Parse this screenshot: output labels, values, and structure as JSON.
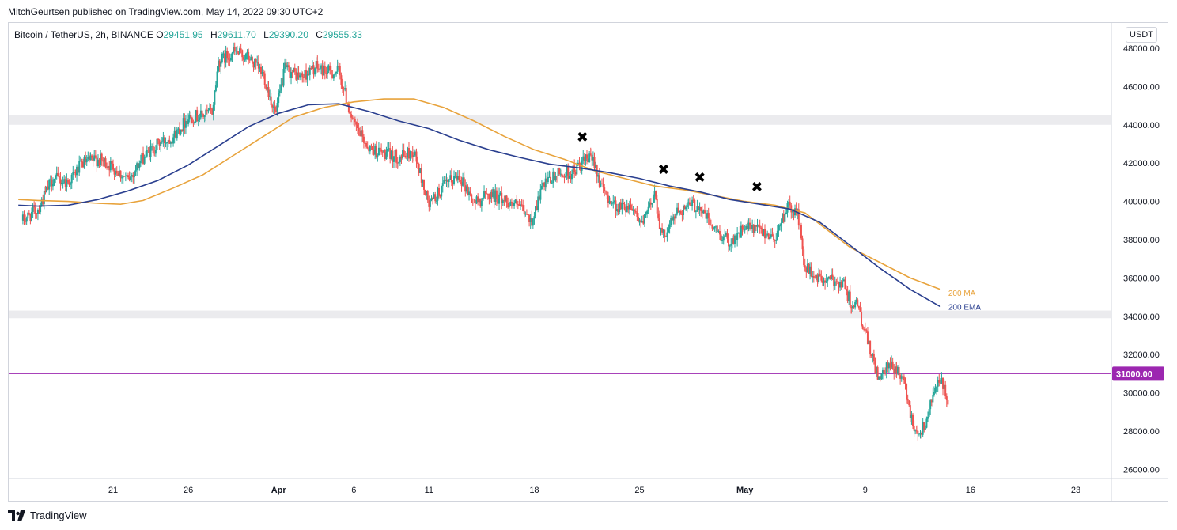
{
  "header": {
    "publisher": "MitchGeurtsen published on TradingView.com, May 14, 2022 09:30 UTC+2"
  },
  "legend": {
    "symbol": "Bitcoin / TetherUS, 2h, BINANCE",
    "open_label": "O",
    "open": "29451.95",
    "high_label": "H",
    "high": "29611.70",
    "low_label": "L",
    "low": "29390.20",
    "close_label": "C",
    "close": "29555.33"
  },
  "currency": "USDT",
  "footer": {
    "brand": "TradingView"
  },
  "colors": {
    "up": "#26a69a",
    "down": "#ef5350",
    "ma": "#e8a33c",
    "ema": "#2a3f8f",
    "hline": "#9c27b0",
    "zone": "#ebebee"
  },
  "chart_data": {
    "type": "candlestick",
    "ylim": [
      25500,
      49300
    ],
    "y_ticks": [
      "48000.00",
      "46000.00",
      "44000.00",
      "42000.00",
      "40000.00",
      "38000.00",
      "36000.00",
      "34000.00",
      "32000.00",
      "30000.00",
      "28000.00",
      "26000.00"
    ],
    "y_tick_values": [
      48000,
      46000,
      44000,
      42000,
      40000,
      38000,
      36000,
      34000,
      32000,
      30000,
      28000,
      26000
    ],
    "x_ticks": [
      {
        "label": "21",
        "day": 21
      },
      {
        "label": "26",
        "day": 26
      },
      {
        "label": "Apr",
        "day": 32
      },
      {
        "label": "6",
        "day": 37
      },
      {
        "label": "11",
        "day": 42
      },
      {
        "label": "18",
        "day": 49
      },
      {
        "label": "25",
        "day": 56
      },
      {
        "label": "May",
        "day": 63
      },
      {
        "label": "9",
        "day": 71
      },
      {
        "label": "16",
        "day": 78
      },
      {
        "label": "23",
        "day": 85
      }
    ],
    "x_range_days": [
      14.7,
      87.4
    ],
    "price_path": [
      [
        15.0,
        39000
      ],
      [
        16.0,
        39600
      ],
      [
        17.0,
        41200
      ],
      [
        18.0,
        41000
      ],
      [
        19.0,
        42000
      ],
      [
        20.0,
        42200
      ],
      [
        21.0,
        41800
      ],
      [
        22.0,
        41100
      ],
      [
        23.0,
        42300
      ],
      [
        24.0,
        43000
      ],
      [
        25.0,
        43400
      ],
      [
        26.0,
        44400
      ],
      [
        27.0,
        44500
      ],
      [
        27.6,
        44700
      ],
      [
        28.0,
        47300
      ],
      [
        29.0,
        47800
      ],
      [
        30.0,
        47500
      ],
      [
        31.0,
        46600
      ],
      [
        31.8,
        44500
      ],
      [
        32.4,
        46900
      ],
      [
        33.5,
        46500
      ],
      [
        34.5,
        47000
      ],
      [
        35.5,
        46700
      ],
      [
        36.0,
        46800
      ],
      [
        37.0,
        44000
      ],
      [
        38.0,
        42800
      ],
      [
        39.0,
        42500
      ],
      [
        40.0,
        42300
      ],
      [
        41.0,
        42600
      ],
      [
        42.0,
        39800
      ],
      [
        43.0,
        40800
      ],
      [
        44.0,
        41400
      ],
      [
        45.0,
        39900
      ],
      [
        46.0,
        40400
      ],
      [
        47.0,
        40100
      ],
      [
        48.0,
        39700
      ],
      [
        48.8,
        38900
      ],
      [
        49.5,
        40700
      ],
      [
        50.5,
        41400
      ],
      [
        51.5,
        41500
      ],
      [
        52.5,
        42200
      ],
      [
        53.0,
        42100
      ],
      [
        53.5,
        40600
      ],
      [
        54.5,
        39700
      ],
      [
        55.5,
        39800
      ],
      [
        56.2,
        38700
      ],
      [
        57.0,
        40500
      ],
      [
        57.5,
        38100
      ],
      [
        58.5,
        39500
      ],
      [
        59.5,
        39800
      ],
      [
        60.0,
        39700
      ],
      [
        61.0,
        38500
      ],
      [
        62.0,
        37900
      ],
      [
        63.0,
        38600
      ],
      [
        64.0,
        38500
      ],
      [
        65.0,
        38100
      ],
      [
        65.8,
        39700
      ],
      [
        66.5,
        39400
      ],
      [
        67.0,
        36500
      ],
      [
        68.0,
        35900
      ],
      [
        69.5,
        35800
      ],
      [
        70.0,
        34800
      ],
      [
        70.5,
        34500
      ],
      [
        71.0,
        33100
      ],
      [
        71.5,
        31700
      ],
      [
        72.0,
        30600
      ],
      [
        72.5,
        31400
      ],
      [
        73.0,
        31300
      ],
      [
        73.5,
        30800
      ],
      [
        74.0,
        28900
      ],
      [
        74.5,
        27800
      ],
      [
        75.0,
        28400
      ],
      [
        75.5,
        30100
      ],
      [
        76.0,
        30600
      ],
      [
        76.5,
        29600
      ]
    ],
    "ma_200": [
      [
        14.7,
        40100
      ],
      [
        16.0,
        40050
      ],
      [
        18.0,
        40000
      ],
      [
        20.0,
        39900
      ],
      [
        21.5,
        39850
      ],
      [
        23.0,
        40050
      ],
      [
        25.0,
        40700
      ],
      [
        27.0,
        41400
      ],
      [
        29.0,
        42400
      ],
      [
        31.0,
        43400
      ],
      [
        33.0,
        44400
      ],
      [
        35.0,
        44900
      ],
      [
        37.0,
        45200
      ],
      [
        39.0,
        45350
      ],
      [
        41.0,
        45350
      ],
      [
        43.0,
        44900
      ],
      [
        45.0,
        44200
      ],
      [
        47.0,
        43400
      ],
      [
        49.0,
        42700
      ],
      [
        51.0,
        42200
      ],
      [
        53.0,
        41600
      ],
      [
        55.0,
        41200
      ],
      [
        57.0,
        40800
      ],
      [
        59.0,
        40600
      ],
      [
        61.0,
        40300
      ],
      [
        63.0,
        40000
      ],
      [
        65.0,
        39800
      ],
      [
        67.0,
        39400
      ],
      [
        68.0,
        38800
      ],
      [
        70.0,
        37600
      ],
      [
        72.0,
        36800
      ],
      [
        74.0,
        36000
      ],
      [
        76.0,
        35400
      ]
    ],
    "ema_200": [
      [
        14.7,
        39800
      ],
      [
        16.0,
        39750
      ],
      [
        18.0,
        39800
      ],
      [
        20.0,
        40100
      ],
      [
        22.0,
        40550
      ],
      [
        24.0,
        41100
      ],
      [
        26.0,
        41900
      ],
      [
        28.0,
        42900
      ],
      [
        30.0,
        43900
      ],
      [
        32.0,
        44600
      ],
      [
        34.0,
        45050
      ],
      [
        36.0,
        45100
      ],
      [
        38.0,
        44700
      ],
      [
        40.0,
        44200
      ],
      [
        42.0,
        43800
      ],
      [
        44.0,
        43200
      ],
      [
        46.0,
        42700
      ],
      [
        48.0,
        42300
      ],
      [
        50.0,
        41950
      ],
      [
        52.0,
        41750
      ],
      [
        54.0,
        41500
      ],
      [
        56.0,
        41200
      ],
      [
        58.0,
        40800
      ],
      [
        60.0,
        40500
      ],
      [
        62.0,
        40100
      ],
      [
        64.0,
        39850
      ],
      [
        66.0,
        39600
      ],
      [
        68.0,
        38900
      ],
      [
        70.0,
        37700
      ],
      [
        72.0,
        36500
      ],
      [
        74.0,
        35400
      ],
      [
        76.0,
        34500
      ]
    ],
    "support_zones": [
      [
        44000,
        44500
      ],
      [
        33900,
        34300
      ]
    ],
    "hline": {
      "value": 31000,
      "label": "31000.00"
    },
    "x_markers": [
      [
        52.2,
        43100
      ],
      [
        57.6,
        41400
      ],
      [
        60.0,
        41000
      ],
      [
        63.8,
        40500
      ]
    ],
    "ma_label": "200 MA",
    "ema_label": "200 EMA"
  }
}
